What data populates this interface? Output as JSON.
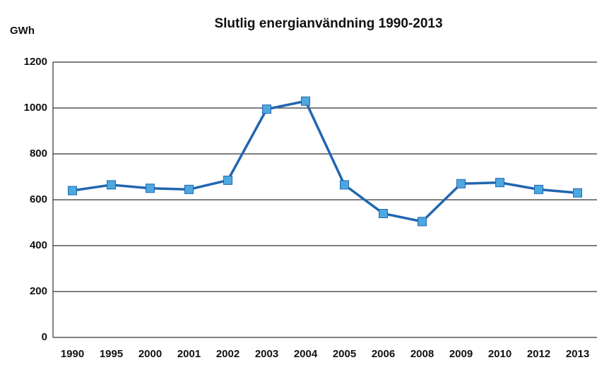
{
  "chart_data": {
    "type": "line",
    "title": "Slutlig energianvändning 1990-2013",
    "y_label": "GWh",
    "categories": [
      "1990",
      "1995",
      "2000",
      "2001",
      "2002",
      "2003",
      "2004",
      "2005",
      "2006",
      "2008",
      "2009",
      "2010",
      "2012",
      "2013"
    ],
    "values": [
      640,
      665,
      650,
      645,
      685,
      995,
      1030,
      665,
      540,
      505,
      670,
      675,
      645,
      630
    ],
    "color": "#2166b0",
    "marker_color": "#4ea8e0",
    "ylim": [
      0,
      1200
    ],
    "yticks": [
      0,
      200,
      400,
      600,
      800,
      1000,
      1200
    ],
    "grid": true
  }
}
